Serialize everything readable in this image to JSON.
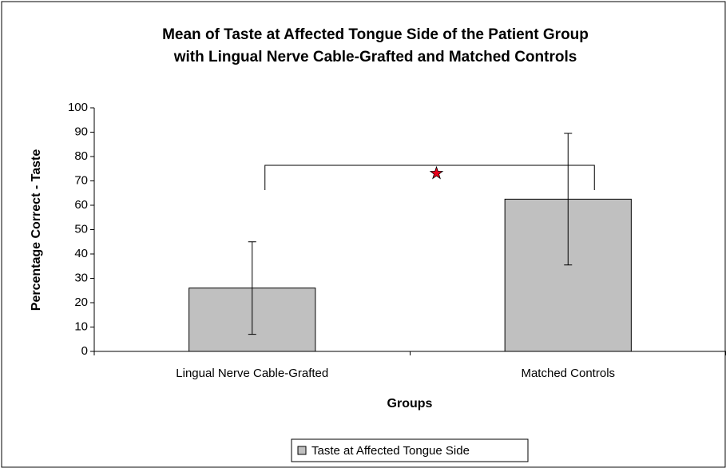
{
  "chart_data": {
    "type": "bar",
    "title": [
      "Mean of Taste at Affected Tongue Side of the Patient Group",
      "with Lingual Nerve Cable-Grafted and Matched Controls"
    ],
    "x_label": "Groups",
    "y_label": "Percentage Correct - Taste",
    "categories": [
      "Lingual Nerve Cable-Grafted",
      "Matched Controls"
    ],
    "series": [
      {
        "name": "Taste at Affected Tongue Side",
        "color": "#c0c0c0",
        "values": [
          26,
          62.5
        ],
        "errors": [
          19,
          27
        ]
      }
    ],
    "annotation": "*",
    "ylim": [
      0,
      100
    ],
    "yticks": [
      0,
      10,
      20,
      30,
      40,
      50,
      60,
      70,
      80,
      90,
      100
    ],
    "legend": "bottom"
  }
}
